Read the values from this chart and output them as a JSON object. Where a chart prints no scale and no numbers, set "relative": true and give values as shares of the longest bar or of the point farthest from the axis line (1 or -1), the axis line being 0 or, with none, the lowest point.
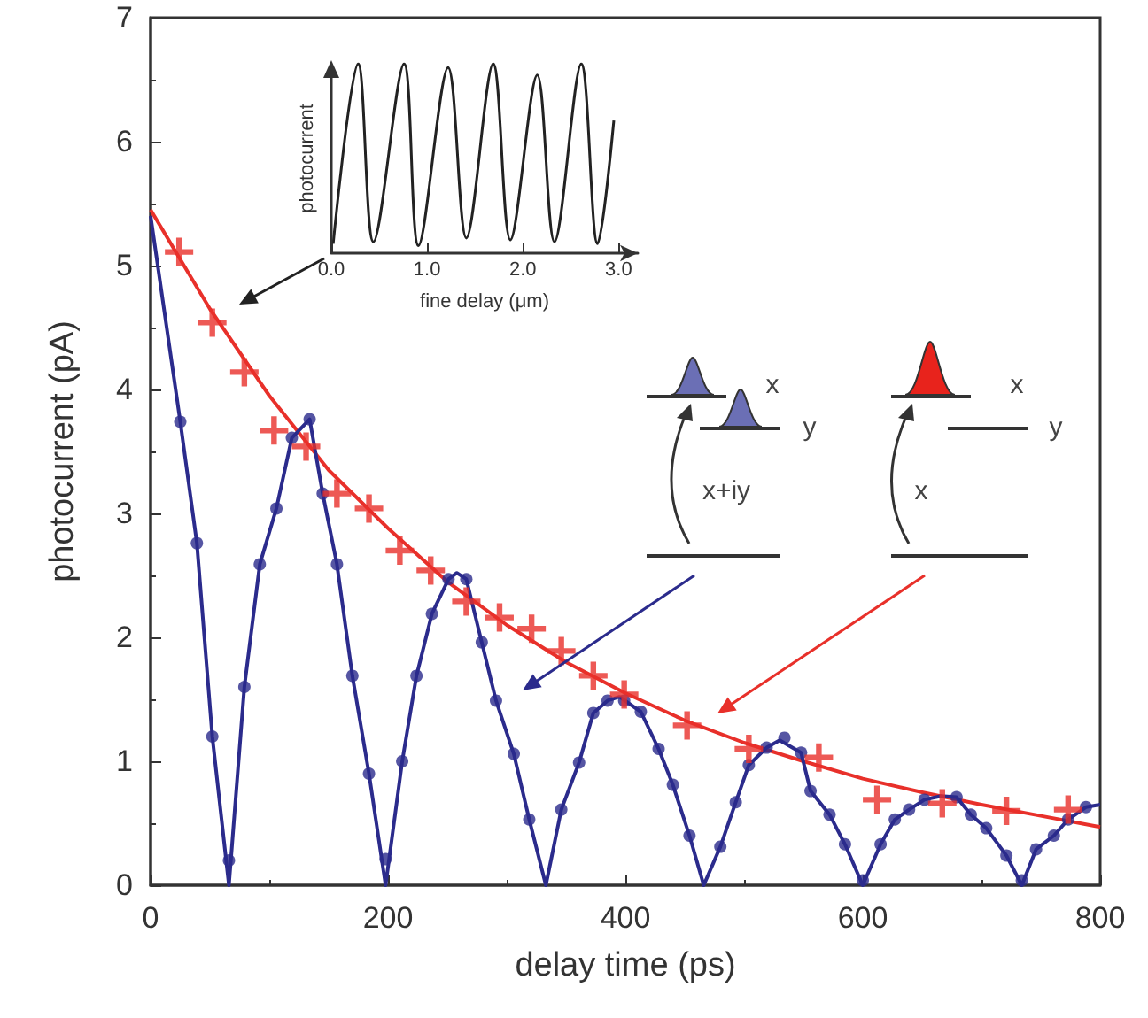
{
  "chart_data": [
    {
      "type": "scatter",
      "xlabel": "delay time (ps)",
      "ylabel": "photocurrent (pA)",
      "xlim": [
        0,
        800
      ],
      "xticks": [
        0,
        200,
        400,
        600,
        800
      ],
      "ylim": [
        0,
        7
      ],
      "yticks": [
        0,
        1,
        2,
        3,
        4,
        5,
        6,
        7
      ],
      "grid": false,
      "annotations": [
        "x",
        "y",
        "x+iy",
        "x",
        "y",
        "x"
      ],
      "series": [
        {
          "type": "line",
          "marker": "none",
          "color": "#e8302a",
          "x": [
            0,
            50,
            100,
            150,
            200,
            250,
            300,
            350,
            400,
            450,
            500,
            550,
            600,
            650,
            700,
            750,
            800
          ],
          "values": [
            5.45,
            4.65,
            3.95,
            3.35,
            2.88,
            2.45,
            2.1,
            1.8,
            1.55,
            1.33,
            1.15,
            1.0,
            0.86,
            0.75,
            0.65,
            0.56,
            0.47
          ]
        },
        {
          "type": "line",
          "marker": "none",
          "color": "#2b2b8c",
          "x": [
            0,
            25,
            39,
            52,
            66,
            79,
            92,
            106,
            119,
            134,
            145,
            157,
            170,
            184,
            198,
            212,
            224,
            237,
            251,
            258,
            266,
            279,
            291,
            306,
            319,
            333,
            346,
            361,
            373,
            385,
            395,
            413,
            428,
            440,
            454,
            466,
            480,
            493,
            504,
            519,
            530,
            548,
            556,
            572,
            585,
            600,
            615,
            627,
            639,
            652,
            666,
            679,
            691,
            704,
            721,
            734,
            746,
            761,
            773,
            788,
            800
          ],
          "values": [
            5.4,
            3.74,
            2.76,
            1.2,
            0.0,
            1.6,
            2.59,
            3.04,
            3.61,
            3.76,
            3.16,
            2.59,
            1.69,
            0.9,
            0.0,
            1.0,
            1.69,
            2.19,
            2.47,
            2.52,
            2.47,
            1.96,
            1.49,
            1.06,
            0.53,
            0.0,
            0.61,
            0.99,
            1.39,
            1.49,
            1.52,
            1.4,
            1.1,
            0.81,
            0.4,
            0.0,
            0.31,
            0.67,
            0.97,
            1.11,
            1.17,
            1.07,
            0.76,
            0.57,
            0.33,
            0.0,
            0.33,
            0.53,
            0.61,
            0.69,
            0.72,
            0.71,
            0.57,
            0.46,
            0.24,
            0.0,
            0.29,
            0.4,
            0.53,
            0.63,
            0.65
          ]
        },
        {
          "marker": "circle",
          "color": "#2b2b8c",
          "x": [
            25,
            39,
            52,
            66,
            79,
            92,
            106,
            119,
            134,
            145,
            157,
            170,
            184,
            198,
            212,
            224,
            237,
            251,
            266,
            279,
            291,
            306,
            319,
            346,
            361,
            373,
            385,
            399,
            413,
            428,
            440,
            454,
            480,
            493,
            504,
            519,
            534,
            548,
            556,
            572,
            585,
            600,
            615,
            627,
            639,
            652,
            679,
            691,
            704,
            721,
            734,
            746,
            761,
            773,
            788
          ],
          "values": [
            3.74,
            2.76,
            1.2,
            0.2,
            1.6,
            2.59,
            3.04,
            3.61,
            3.76,
            3.16,
            2.59,
            1.69,
            0.9,
            0.21,
            1.0,
            1.69,
            2.19,
            2.47,
            2.47,
            1.96,
            1.49,
            1.06,
            0.53,
            0.61,
            0.99,
            1.39,
            1.49,
            1.49,
            1.4,
            1.1,
            0.81,
            0.4,
            0.31,
            0.67,
            0.97,
            1.11,
            1.19,
            1.07,
            0.76,
            0.57,
            0.33,
            0.04,
            0.33,
            0.53,
            0.61,
            0.69,
            0.71,
            0.57,
            0.46,
            0.24,
            0.04,
            0.29,
            0.4,
            0.53,
            0.63
          ]
        },
        {
          "marker": "cross",
          "color": "#e8302a",
          "x": [
            24,
            52,
            79,
            104,
            131,
            157,
            184,
            210,
            236,
            266,
            294,
            321,
            346,
            373,
            399,
            452,
            504,
            563,
            612,
            667,
            721,
            773
          ],
          "values": [
            5.11,
            4.54,
            4.14,
            3.67,
            3.54,
            3.16,
            3.04,
            2.7,
            2.54,
            2.29,
            2.16,
            2.07,
            1.89,
            1.69,
            1.54,
            1.29,
            1.1,
            1.03,
            0.69,
            0.66,
            0.6,
            0.61
          ]
        }
      ]
    },
    {
      "type": "line",
      "xlabel": "fine delay (μm)",
      "ylabel": "photocurrent",
      "relative": true,
      "tick_labels": "x",
      "xlim": [
        0,
        3.2
      ],
      "xticks": [
        {
          "value": 0,
          "label": "0.0"
        },
        {
          "value": 1,
          "label": "1.0"
        },
        {
          "value": 2,
          "label": "2.0"
        },
        {
          "value": 3,
          "label": "3.0"
        }
      ],
      "series": [
        {
          "color": "#222222",
          "x": [
            0.02,
            0.28,
            0.44,
            0.76,
            0.91,
            1.22,
            1.41,
            1.69,
            1.87,
            2.15,
            2.33,
            2.61,
            2.78,
            2.95
          ],
          "values": [
            0.05,
            1.0,
            0.06,
            1.0,
            0.04,
            0.98,
            0.08,
            1.0,
            0.07,
            0.94,
            0.06,
            1.0,
            0.05,
            0.7
          ]
        }
      ]
    }
  ]
}
